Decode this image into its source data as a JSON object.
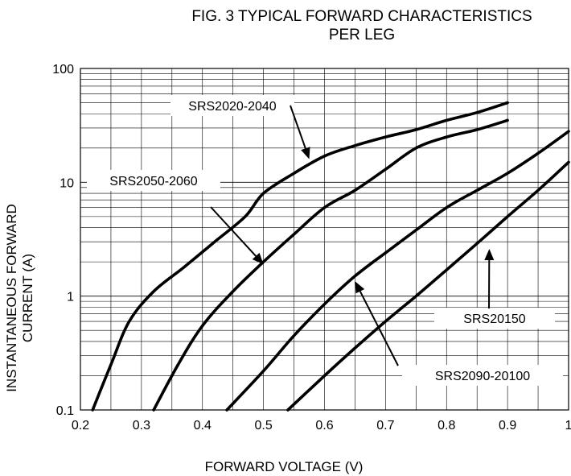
{
  "chart_data": {
    "type": "line",
    "title": "FIG. 3 TYPICAL FORWARD CHARACTERISTICS",
    "subtitle": "PER LEG",
    "xlabel": "FORWARD VOLTAGE (V)",
    "ylabel_lines": [
      "INSTANTANEOUS FORWARD",
      "CURRENT (A)"
    ],
    "xlim": [
      0.2,
      1.0
    ],
    "ylim": [
      0.1,
      100
    ],
    "yscale": "log",
    "grid": true,
    "xticks": [
      "0.2",
      "0.3",
      "0.4",
      "0.5",
      "0.6",
      "0.7",
      "0.8",
      "0.9",
      "1"
    ],
    "yticks": [
      "0.1",
      "1",
      "10",
      "100"
    ],
    "series": [
      {
        "name": "SRS2020-2040",
        "points": [
          [
            0.22,
            0.1
          ],
          [
            0.25,
            0.25
          ],
          [
            0.28,
            0.6
          ],
          [
            0.32,
            1.1
          ],
          [
            0.37,
            1.8
          ],
          [
            0.42,
            3.0
          ],
          [
            0.47,
            5.0
          ],
          [
            0.5,
            8.0
          ],
          [
            0.55,
            12
          ],
          [
            0.6,
            17
          ],
          [
            0.65,
            21
          ],
          [
            0.7,
            25
          ],
          [
            0.75,
            29
          ],
          [
            0.8,
            35
          ],
          [
            0.85,
            41
          ],
          [
            0.9,
            50
          ]
        ]
      },
      {
        "name": "SRS2050-2060",
        "points": [
          [
            0.32,
            0.1
          ],
          [
            0.36,
            0.25
          ],
          [
            0.4,
            0.55
          ],
          [
            0.45,
            1.1
          ],
          [
            0.5,
            2.0
          ],
          [
            0.55,
            3.5
          ],
          [
            0.6,
            6.0
          ],
          [
            0.65,
            8.5
          ],
          [
            0.7,
            13
          ],
          [
            0.75,
            20
          ],
          [
            0.8,
            25
          ],
          [
            0.85,
            29
          ],
          [
            0.9,
            35
          ]
        ]
      },
      {
        "name": "SRS2090-20100",
        "points": [
          [
            0.44,
            0.1
          ],
          [
            0.5,
            0.22
          ],
          [
            0.55,
            0.45
          ],
          [
            0.6,
            0.85
          ],
          [
            0.65,
            1.5
          ],
          [
            0.7,
            2.4
          ],
          [
            0.75,
            3.8
          ],
          [
            0.8,
            6.0
          ],
          [
            0.85,
            8.5
          ],
          [
            0.9,
            12
          ],
          [
            0.95,
            18
          ],
          [
            1.0,
            28
          ]
        ]
      },
      {
        "name": "SRS20150",
        "points": [
          [
            0.54,
            0.1
          ],
          [
            0.6,
            0.2
          ],
          [
            0.65,
            0.35
          ],
          [
            0.7,
            0.6
          ],
          [
            0.75,
            1.0
          ],
          [
            0.8,
            1.7
          ],
          [
            0.85,
            2.9
          ],
          [
            0.9,
            5.0
          ],
          [
            0.95,
            8.5
          ],
          [
            1.0,
            15
          ]
        ]
      }
    ],
    "annotations": [
      {
        "text": "SRS2020-2040",
        "tip": [
          0.575,
          16
        ]
      },
      {
        "text": "SRS2050-2060",
        "tip": [
          0.5,
          1.9
        ]
      },
      {
        "text": "SRS2090-20100",
        "tip": [
          0.65,
          1.35
        ]
      },
      {
        "text": "SRS20150",
        "tip": [
          0.87,
          2.6
        ]
      }
    ]
  }
}
